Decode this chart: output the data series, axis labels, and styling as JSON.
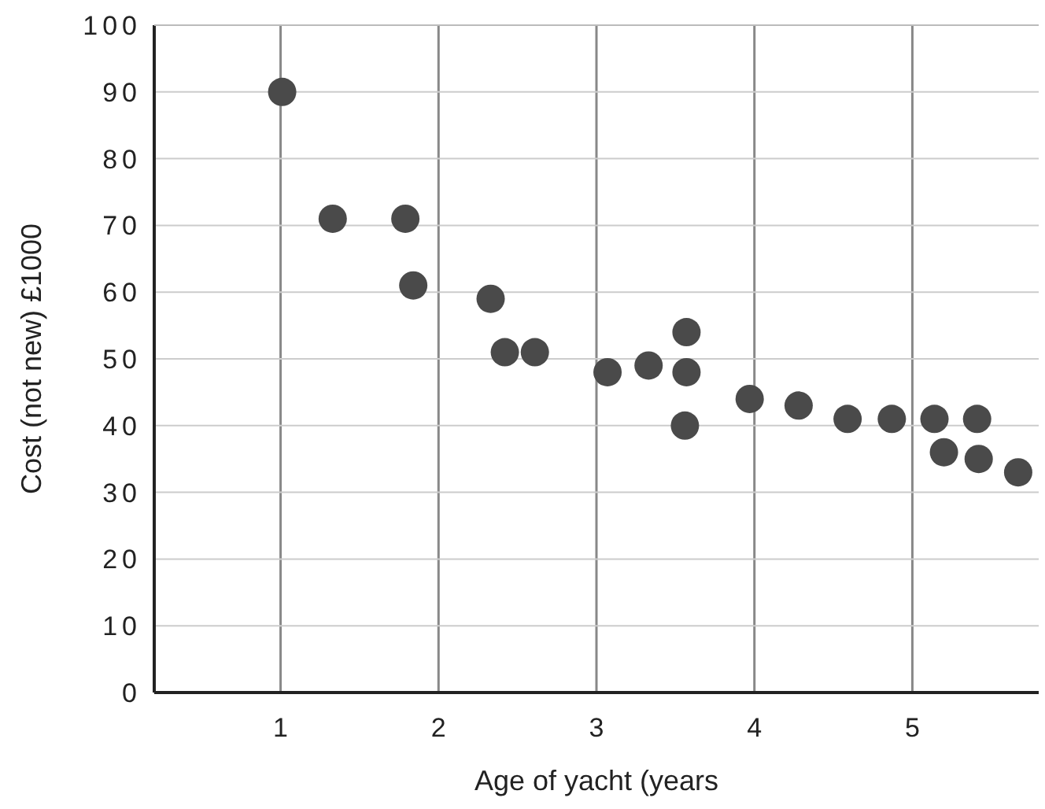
{
  "chart_data": {
    "type": "scatter",
    "xlabel": "Age of yacht (years",
    "ylabel": "Cost (not new) £1000",
    "xlim": [
      0.2,
      5.8
    ],
    "xticks": [
      1,
      2,
      3,
      4,
      5
    ],
    "ylim": [
      0,
      100
    ],
    "yticks": [
      0,
      10,
      20,
      30,
      40,
      50,
      60,
      70,
      80,
      90,
      100
    ],
    "grid": true,
    "marker": "circle",
    "series": [
      {
        "color": "#4a4a4a",
        "x": [
          1.01,
          1.33,
          1.79,
          1.84,
          2.33,
          2.42,
          2.61,
          3.07,
          3.33,
          3.57,
          3.57,
          3.56,
          3.97,
          4.28,
          4.59,
          4.87,
          5.14,
          5.41,
          5.2,
          5.42,
          5.67
        ],
        "values": [
          90,
          71,
          71,
          61,
          59,
          51,
          51,
          48,
          49,
          54,
          48,
          40,
          44,
          43,
          41,
          41,
          41,
          41,
          36,
          35,
          33
        ]
      }
    ]
  }
}
